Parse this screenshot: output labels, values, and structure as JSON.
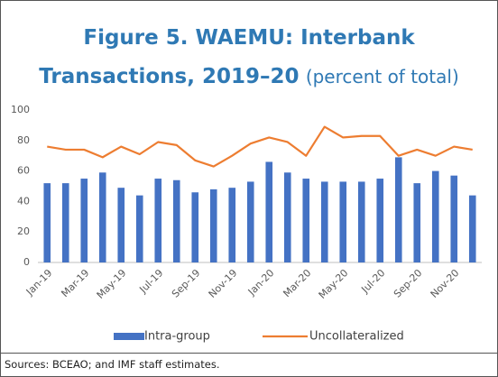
{
  "chart_data": {
    "type": "bar_line",
    "title": "Figure 5. WAEMU: Interbank Transactions, 2019–20",
    "subtitle": "(percent of total)",
    "categories": [
      "Jan-19",
      null,
      "Mar-19",
      null,
      "May-19",
      null,
      "Jul-19",
      null,
      "Sep-19",
      null,
      "Nov-19",
      null,
      "Jan-20",
      null,
      "Mar-20",
      null,
      "May-20",
      null,
      "Jul-20",
      null,
      "Sep-20",
      null,
      "Nov-20",
      null
    ],
    "series": [
      {
        "name": "Intra-group",
        "type": "bar",
        "color": "#4472c4",
        "values": [
          52,
          52,
          55,
          59,
          49,
          44,
          55,
          54,
          46,
          48,
          49,
          53,
          66,
          59,
          55,
          53,
          53,
          53,
          55,
          69,
          52,
          60,
          57,
          44
        ]
      },
      {
        "name": "Uncollateralized",
        "type": "line",
        "color": "#ed7d31",
        "values": [
          76,
          74,
          74,
          69,
          76,
          71,
          79,
          77,
          67,
          63,
          70,
          78,
          82,
          79,
          70,
          89,
          82,
          83,
          83,
          70,
          74,
          70,
          76,
          74
        ]
      }
    ],
    "ylim": [
      0,
      100
    ],
    "yticks": [
      0,
      20,
      40,
      60,
      80,
      100
    ],
    "grid": false,
    "source": "Sources: BCEAO; and IMF staff estimates."
  }
}
